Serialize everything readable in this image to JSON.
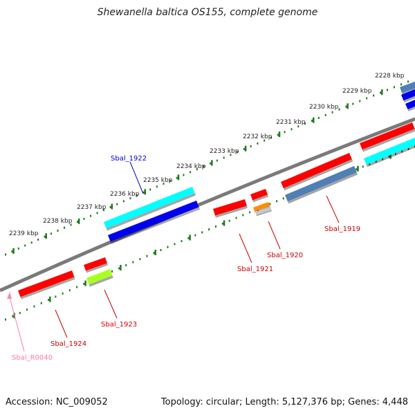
{
  "title": "Shewanella baltica OS155, complete genome",
  "footer": {
    "accession": "Accession: NC_009052",
    "summary": "Topology: circular; Length: 5,127,376 bp; Genes: 4,448"
  },
  "colors": {
    "backbone": "#7f7f7f",
    "ticks": "#1a7a1a",
    "red": "#ff0000",
    "cyan": "#00ffff",
    "blue": "#0000ee",
    "steel": "#4f7fb5",
    "orange": "#ff8c00",
    "lime": "#aaff22",
    "grey": "#c8c8c8",
    "pink": "#ff88bb",
    "label_red": "#cc0000",
    "label_blue": "#0000cc",
    "label_pink": "#ff77aa"
  },
  "scale": {
    "ticks": [
      "2228 kbp",
      "2229 kbp",
      "2230 kbp",
      "2231 kbp",
      "2232 kbp",
      "2233 kbp",
      "2234 kbp",
      "2235 kbp",
      "2236 kbp",
      "2237 kbp",
      "2238 kbp",
      "2239 kbp"
    ]
  },
  "genes": [
    {
      "name": "Sbal_1919",
      "color": "red"
    },
    {
      "name": "Sbal_1920",
      "color": "red"
    },
    {
      "name": "Sbal_1921",
      "color": "red"
    },
    {
      "name": "Sbal_1922",
      "color": "blue"
    },
    {
      "name": "Sbal_1923",
      "color": "red"
    },
    {
      "name": "Sbal_1924",
      "color": "red"
    },
    {
      "name": "Sbal_R0040",
      "color": "pink"
    }
  ]
}
